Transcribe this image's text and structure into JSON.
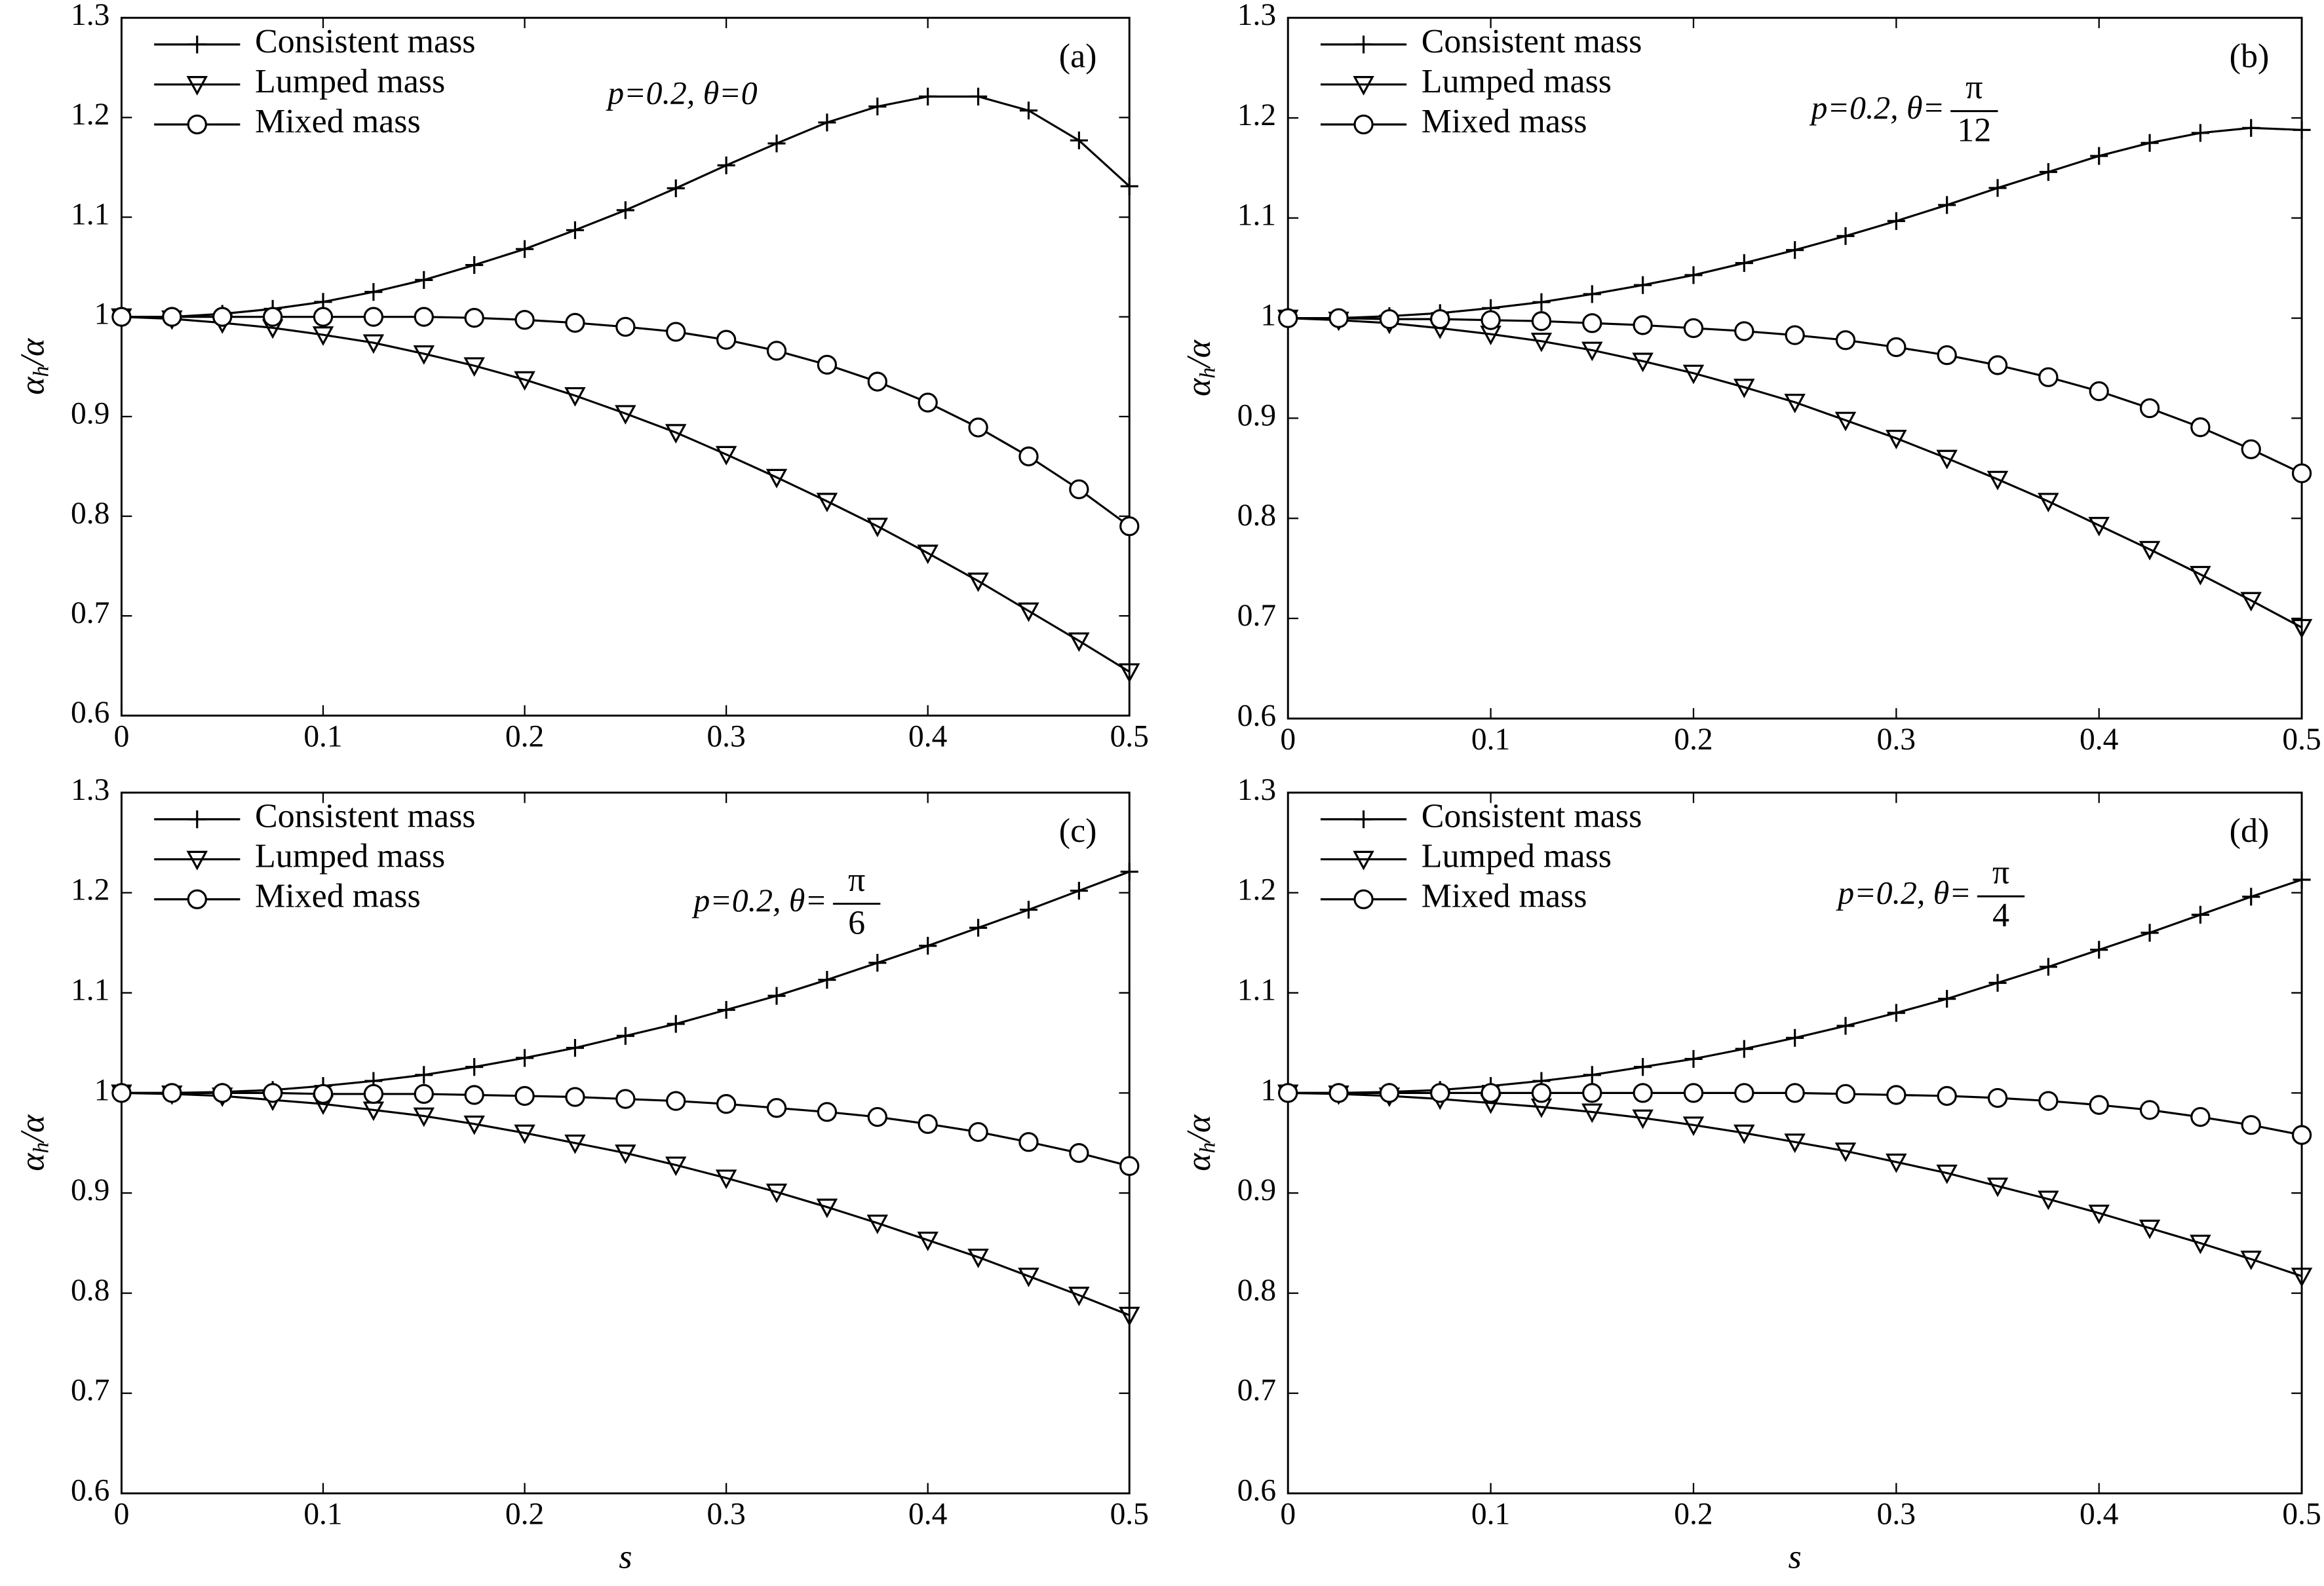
{
  "chart_data": [
    {
      "type": "line",
      "panel_label": "(a)",
      "annotation": "p=0.2, θ=0",
      "ylabel": {
        "base": "α",
        "sub": "h",
        "rest": "/α"
      },
      "x": [
        0,
        0.025,
        0.05,
        0.075,
        0.1,
        0.125,
        0.15,
        0.175,
        0.2,
        0.225,
        0.25,
        0.275,
        0.3,
        0.325,
        0.35,
        0.375,
        0.4,
        0.425,
        0.45,
        0.475,
        0.5
      ],
      "xlim": [
        0,
        0.5
      ],
      "xticks": [
        0,
        0.1,
        0.2,
        0.3,
        0.4,
        0.5
      ],
      "ylim": [
        0.6,
        1.3
      ],
      "yticks": [
        0.6,
        0.7,
        0.8,
        0.9,
        1,
        1.1,
        1.2,
        1.3
      ],
      "grid": false,
      "legend": "upper-left",
      "series": [
        {
          "name": "Consistent mass",
          "color": "#000000",
          "marker": "plus",
          "values": [
            1,
            1.0,
            1.003,
            1.008,
            1.015,
            1.025,
            1.037,
            1.052,
            1.068,
            1.087,
            1.107,
            1.129,
            1.152,
            1.174,
            1.195,
            1.211,
            1.221,
            1.221,
            1.207,
            1.177,
            1.131
          ]
        },
        {
          "name": "Lumped mass",
          "color": "#000000",
          "marker": "triangle-down",
          "values": [
            1,
            0.998,
            0.994,
            0.989,
            0.982,
            0.974,
            0.963,
            0.951,
            0.937,
            0.921,
            0.903,
            0.884,
            0.862,
            0.839,
            0.815,
            0.79,
            0.763,
            0.735,
            0.705,
            0.675,
            0.644
          ]
        },
        {
          "name": "Mixed mass",
          "color": "#000000",
          "marker": "circle",
          "values": [
            1,
            1.0,
            1.0,
            1.0,
            1.0,
            1.0,
            1.0,
            0.999,
            0.997,
            0.994,
            0.99,
            0.985,
            0.977,
            0.966,
            0.952,
            0.935,
            0.914,
            0.889,
            0.86,
            0.827,
            0.79
          ]
        }
      ]
    },
    {
      "type": "line",
      "panel_label": "(b)",
      "annotation": "p=0.2, θ=",
      "annotation_numerator": "π",
      "annotation_denominator": "12",
      "ylabel": {
        "base": "α",
        "sub": "h",
        "rest": "/α"
      },
      "x": [
        0,
        0.025,
        0.05,
        0.075,
        0.1,
        0.125,
        0.15,
        0.175,
        0.2,
        0.225,
        0.25,
        0.275,
        0.3,
        0.325,
        0.35,
        0.375,
        0.4,
        0.425,
        0.45,
        0.475,
        0.5
      ],
      "xlim": [
        0,
        0.5
      ],
      "xticks": [
        0,
        0.1,
        0.2,
        0.3,
        0.4,
        0.5
      ],
      "ylim": [
        0.6,
        1.3
      ],
      "yticks": [
        0.6,
        0.7,
        0.8,
        0.9,
        1,
        1.1,
        1.2,
        1.3
      ],
      "grid": false,
      "legend": "upper-left",
      "series": [
        {
          "name": "Consistent mass",
          "color": "#000000",
          "marker": "plus",
          "values": [
            1,
            1.0,
            1.002,
            1.005,
            1.01,
            1.016,
            1.024,
            1.033,
            1.043,
            1.055,
            1.068,
            1.082,
            1.097,
            1.113,
            1.13,
            1.146,
            1.162,
            1.175,
            1.185,
            1.19,
            1.188
          ]
        },
        {
          "name": "Lumped mass",
          "color": "#000000",
          "marker": "triangle-down",
          "values": [
            1,
            0.998,
            0.995,
            0.99,
            0.984,
            0.977,
            0.968,
            0.957,
            0.945,
            0.931,
            0.916,
            0.898,
            0.88,
            0.86,
            0.839,
            0.817,
            0.793,
            0.769,
            0.744,
            0.718,
            0.691
          ]
        },
        {
          "name": "Mixed mass",
          "color": "#000000",
          "marker": "circle",
          "values": [
            1,
            1.0,
            0.999,
            0.999,
            0.998,
            0.997,
            0.995,
            0.993,
            0.99,
            0.987,
            0.983,
            0.978,
            0.971,
            0.963,
            0.953,
            0.941,
            0.927,
            0.91,
            0.891,
            0.869,
            0.845
          ]
        }
      ]
    },
    {
      "type": "line",
      "panel_label": "(c)",
      "annotation": "p=0.2, θ=",
      "annotation_numerator": "π",
      "annotation_denominator": "6",
      "ylabel": {
        "base": "α",
        "sub": "h",
        "rest": "/α"
      },
      "xlabel": "s",
      "x": [
        0,
        0.025,
        0.05,
        0.075,
        0.1,
        0.125,
        0.15,
        0.175,
        0.2,
        0.225,
        0.25,
        0.275,
        0.3,
        0.325,
        0.35,
        0.375,
        0.4,
        0.425,
        0.45,
        0.475,
        0.5
      ],
      "xlim": [
        0,
        0.5
      ],
      "xticks": [
        0,
        0.1,
        0.2,
        0.3,
        0.4,
        0.5
      ],
      "ylim": [
        0.6,
        1.3
      ],
      "yticks": [
        0.6,
        0.7,
        0.8,
        0.9,
        1,
        1.1,
        1.2,
        1.3
      ],
      "grid": false,
      "legend": "upper-left",
      "series": [
        {
          "name": "Consistent mass",
          "color": "#000000",
          "marker": "plus",
          "values": [
            1,
            1.0,
            1.001,
            1.003,
            1.007,
            1.012,
            1.018,
            1.026,
            1.035,
            1.045,
            1.057,
            1.069,
            1.083,
            1.097,
            1.113,
            1.13,
            1.147,
            1.165,
            1.183,
            1.202,
            1.221
          ]
        },
        {
          "name": "Lumped mass",
          "color": "#000000",
          "marker": "triangle-down",
          "values": [
            1,
            0.999,
            0.997,
            0.993,
            0.989,
            0.983,
            0.977,
            0.969,
            0.96,
            0.95,
            0.94,
            0.928,
            0.915,
            0.901,
            0.886,
            0.87,
            0.853,
            0.836,
            0.817,
            0.798,
            0.778
          ]
        },
        {
          "name": "Mixed mass",
          "color": "#000000",
          "marker": "circle",
          "values": [
            1,
            1.0,
            1.0,
            1.0,
            0.999,
            0.999,
            0.999,
            0.998,
            0.997,
            0.996,
            0.994,
            0.992,
            0.989,
            0.985,
            0.981,
            0.976,
            0.969,
            0.961,
            0.951,
            0.94,
            0.927
          ]
        }
      ]
    },
    {
      "type": "line",
      "panel_label": "(d)",
      "annotation": "p=0.2, θ=",
      "annotation_numerator": "π",
      "annotation_denominator": "4",
      "ylabel": {
        "base": "α",
        "sub": "h",
        "rest": "/α"
      },
      "xlabel": "s",
      "x": [
        0,
        0.025,
        0.05,
        0.075,
        0.1,
        0.125,
        0.15,
        0.175,
        0.2,
        0.225,
        0.25,
        0.275,
        0.3,
        0.325,
        0.35,
        0.375,
        0.4,
        0.425,
        0.45,
        0.475,
        0.5
      ],
      "xlim": [
        0,
        0.5
      ],
      "xticks": [
        0,
        0.1,
        0.2,
        0.3,
        0.4,
        0.5
      ],
      "ylim": [
        0.6,
        1.3
      ],
      "yticks": [
        0.6,
        0.7,
        0.8,
        0.9,
        1,
        1.1,
        1.2,
        1.3
      ],
      "grid": false,
      "legend": "upper-left",
      "series": [
        {
          "name": "Consistent mass",
          "color": "#000000",
          "marker": "plus",
          "values": [
            1,
            1.0,
            1.001,
            1.003,
            1.007,
            1.012,
            1.018,
            1.026,
            1.034,
            1.044,
            1.055,
            1.067,
            1.08,
            1.094,
            1.11,
            1.126,
            1.143,
            1.16,
            1.178,
            1.196,
            1.213
          ]
        },
        {
          "name": "Lumped mass",
          "color": "#000000",
          "marker": "triangle-down",
          "values": [
            1,
            0.999,
            0.997,
            0.994,
            0.99,
            0.986,
            0.981,
            0.975,
            0.968,
            0.96,
            0.951,
            0.942,
            0.931,
            0.92,
            0.907,
            0.894,
            0.88,
            0.865,
            0.85,
            0.834,
            0.817
          ]
        },
        {
          "name": "Mixed mass",
          "color": "#000000",
          "marker": "circle",
          "values": [
            1,
            1.0,
            1.0,
            1.0,
            1.0,
            1.0,
            1.0,
            1.0,
            1.0,
            1.0,
            1.0,
            0.999,
            0.998,
            0.997,
            0.995,
            0.992,
            0.988,
            0.983,
            0.976,
            0.968,
            0.958
          ]
        }
      ]
    }
  ]
}
